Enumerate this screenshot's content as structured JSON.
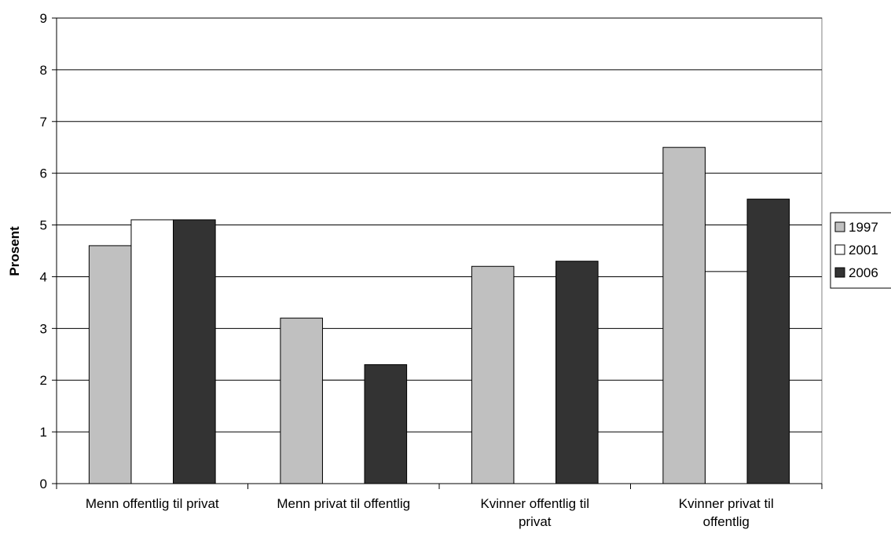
{
  "chart_data": {
    "type": "bar",
    "title": "",
    "xlabel": "",
    "ylabel": "Prosent",
    "ylim": [
      0,
      9
    ],
    "yticks": [
      0,
      1,
      2,
      3,
      4,
      5,
      6,
      7,
      8,
      9
    ],
    "categories": [
      [
        "Menn offentlig til privat"
      ],
      [
        "Menn privat til offentlig"
      ],
      [
        "Kvinner offentlig til",
        "privat"
      ],
      [
        "Kvinner privat til",
        "offentlig"
      ]
    ],
    "series": [
      {
        "name": "1997",
        "color": "#c0c0c0",
        "values": [
          4.6,
          3.2,
          4.2,
          6.5
        ]
      },
      {
        "name": "2001",
        "color": "#ffffff",
        "values": [
          5.1,
          2.0,
          4.0,
          4.1
        ]
      },
      {
        "name": "2006",
        "color": "#333333",
        "values": [
          5.1,
          2.3,
          4.3,
          5.5
        ]
      }
    ],
    "grid": true,
    "legend_position": "right"
  }
}
